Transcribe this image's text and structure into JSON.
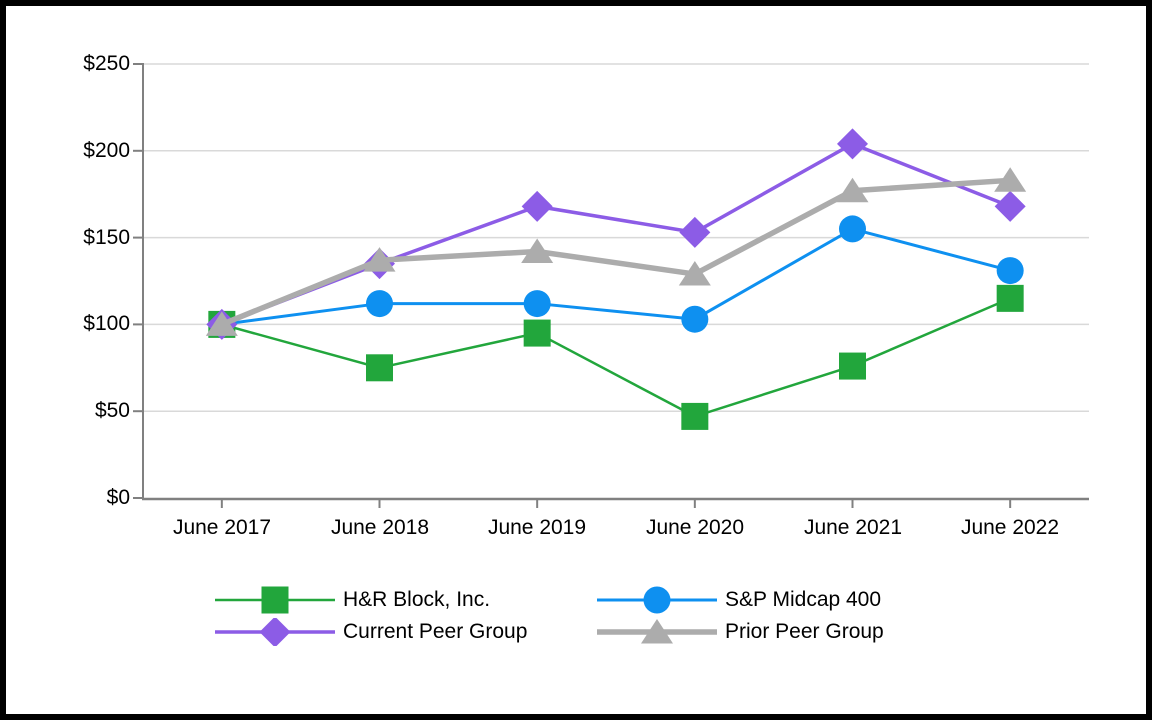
{
  "chart_data": {
    "type": "line",
    "title": "",
    "xlabel": "",
    "ylabel": "",
    "categories": [
      "June 2017",
      "June 2018",
      "June 2019",
      "June 2020",
      "June 2021",
      "June 2022"
    ],
    "y_tick_labels": [
      "$0",
      "$50",
      "$100",
      "$150",
      "$200",
      "$250"
    ],
    "y_tick_values": [
      0,
      50,
      100,
      150,
      200,
      250
    ],
    "ylim": [
      0,
      250
    ],
    "grid": true,
    "legend_position": "bottom",
    "axis_color": "#808080",
    "gridline_color": "#D9D9D9",
    "text_color": "#000000",
    "series": [
      {
        "name": "H&R Block, Inc.",
        "marker": "square",
        "color": "#22A63C",
        "line_width": 2.5,
        "values": [
          100,
          75,
          95,
          47,
          76,
          115
        ]
      },
      {
        "name": "S&P Midcap 400",
        "marker": "circle",
        "color": "#0E90F0",
        "line_width": 3,
        "values": [
          100,
          112,
          112,
          103,
          155,
          131
        ]
      },
      {
        "name": "Current Peer Group",
        "marker": "diamond",
        "color": "#8C5CE6",
        "line_width": 3.5,
        "values": [
          100,
          135,
          168,
          153,
          204,
          168
        ]
      },
      {
        "name": "Prior Peer Group",
        "marker": "triangle",
        "color": "#ACACAC",
        "line_width": 5.5,
        "values": [
          100,
          137,
          142,
          129,
          177,
          183
        ]
      }
    ],
    "draw_order": [
      1,
      0,
      2,
      3
    ]
  }
}
